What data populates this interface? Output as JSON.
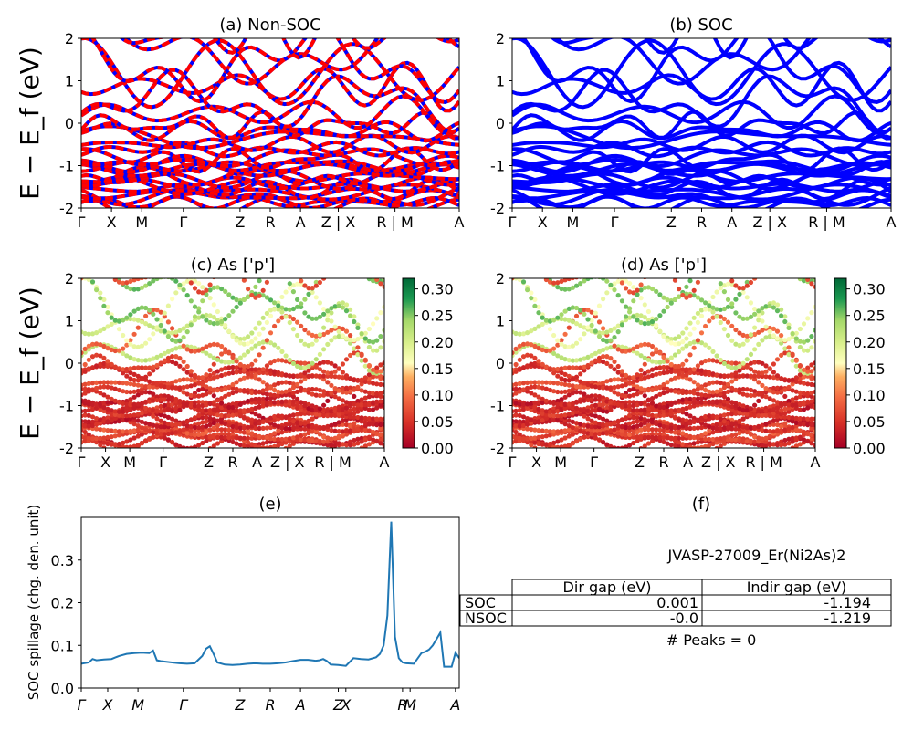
{
  "bands": {
    "ylabel": "E − E_f (eV)",
    "ylim": [
      -2,
      2
    ],
    "yticks": [
      -2,
      -1,
      0,
      1,
      2
    ],
    "kpath_labels": [
      "Γ",
      "X",
      "M",
      "Γ",
      "Z",
      "R",
      "A",
      "Z | X",
      "R | M",
      "A"
    ],
    "kpath_positions": [
      0,
      0.08,
      0.16,
      0.27,
      0.42,
      0.5,
      0.58,
      0.68,
      0.83,
      1.0
    ]
  },
  "colorbar": {
    "ticks": [
      "0.00",
      "0.05",
      "0.10",
      "0.15",
      "0.20",
      "0.25",
      "0.30"
    ],
    "max": 0.32
  },
  "chart_data": [
    {
      "type": "line",
      "panel": "a",
      "title": "(a) Non-SOC",
      "ylabel": "E − E_f (eV)",
      "ylim": [
        -2,
        2
      ],
      "series_colors": [
        "#ff0000",
        "#0000ff"
      ]
    },
    {
      "type": "line",
      "panel": "b",
      "title": "(b) SOC",
      "ylim": [
        -2,
        2
      ],
      "series_colors": [
        "#0000ff"
      ]
    },
    {
      "type": "scatter",
      "panel": "c",
      "title": "(c)  As ['p']",
      "ylabel": "E − E_f (eV)",
      "ylim": [
        -2,
        2
      ],
      "colormap": "RdYlGn",
      "clim": [
        0,
        0.32
      ]
    },
    {
      "type": "scatter",
      "panel": "d",
      "title": "(d) As ['p']",
      "ylim": [
        -2,
        2
      ],
      "colormap": "RdYlGn",
      "clim": [
        0,
        0.32
      ]
    },
    {
      "type": "line",
      "panel": "e",
      "title": "(e)",
      "ylabel": "SOC spillage (chg. den. unit)",
      "ylim": [
        0,
        0.4
      ],
      "yticks": [
        "0.0",
        "0.1",
        "0.2",
        "0.3"
      ],
      "xticklabels": [
        "Γ",
        "X",
        "M",
        "Γ",
        "Z",
        "R",
        "A",
        "Z",
        "X",
        "R",
        "M",
        "A"
      ],
      "xtick_positions": [
        0,
        0.07,
        0.15,
        0.27,
        0.42,
        0.5,
        0.58,
        0.68,
        0.7,
        0.85,
        0.87,
        0.99
      ],
      "series": [
        {
          "name": "",
          "color": "#1f77b4",
          "x": [
            0.0,
            0.02,
            0.03,
            0.04,
            0.06,
            0.08,
            0.1,
            0.12,
            0.14,
            0.16,
            0.18,
            0.19,
            0.2,
            0.21,
            0.22,
            0.24,
            0.26,
            0.28,
            0.3,
            0.32,
            0.33,
            0.34,
            0.35,
            0.36,
            0.38,
            0.4,
            0.42,
            0.44,
            0.46,
            0.48,
            0.5,
            0.52,
            0.54,
            0.56,
            0.58,
            0.6,
            0.62,
            0.63,
            0.64,
            0.65,
            0.66,
            0.68,
            0.7,
            0.72,
            0.74,
            0.76,
            0.78,
            0.79,
            0.8,
            0.81,
            0.82,
            0.83,
            0.84,
            0.85,
            0.86,
            0.88,
            0.9,
            0.91,
            0.92,
            0.93,
            0.94,
            0.95,
            0.96,
            0.97,
            0.98,
            0.99,
            1.0
          ],
          "values": [
            0.057,
            0.06,
            0.068,
            0.065,
            0.067,
            0.068,
            0.075,
            0.08,
            0.082,
            0.083,
            0.082,
            0.088,
            0.065,
            0.063,
            0.062,
            0.06,
            0.058,
            0.057,
            0.058,
            0.075,
            0.092,
            0.098,
            0.08,
            0.06,
            0.055,
            0.054,
            0.055,
            0.057,
            0.058,
            0.057,
            0.057,
            0.058,
            0.06,
            0.063,
            0.066,
            0.066,
            0.064,
            0.065,
            0.068,
            0.063,
            0.055,
            0.054,
            0.052,
            0.07,
            0.068,
            0.067,
            0.072,
            0.08,
            0.1,
            0.17,
            0.39,
            0.12,
            0.07,
            0.06,
            0.058,
            0.057,
            0.082,
            0.085,
            0.09,
            0.1,
            0.115,
            0.13,
            0.05,
            0.05,
            0.05,
            0.083,
            0.07
          ]
        }
      ]
    },
    {
      "type": "table",
      "panel": "f",
      "title": "(f)",
      "subtitle": "JVASP-27009_Er(Ni2As)2",
      "columns": [
        "Dir gap (eV)",
        "Indir gap (eV)"
      ],
      "rows": [
        {
          "label": "SOC",
          "values": [
            "0.001",
            "-1.194"
          ]
        },
        {
          "label": "NSOC",
          "values": [
            "-0.0",
            "-1.219"
          ]
        }
      ],
      "footer": "# Peaks = 0"
    }
  ]
}
